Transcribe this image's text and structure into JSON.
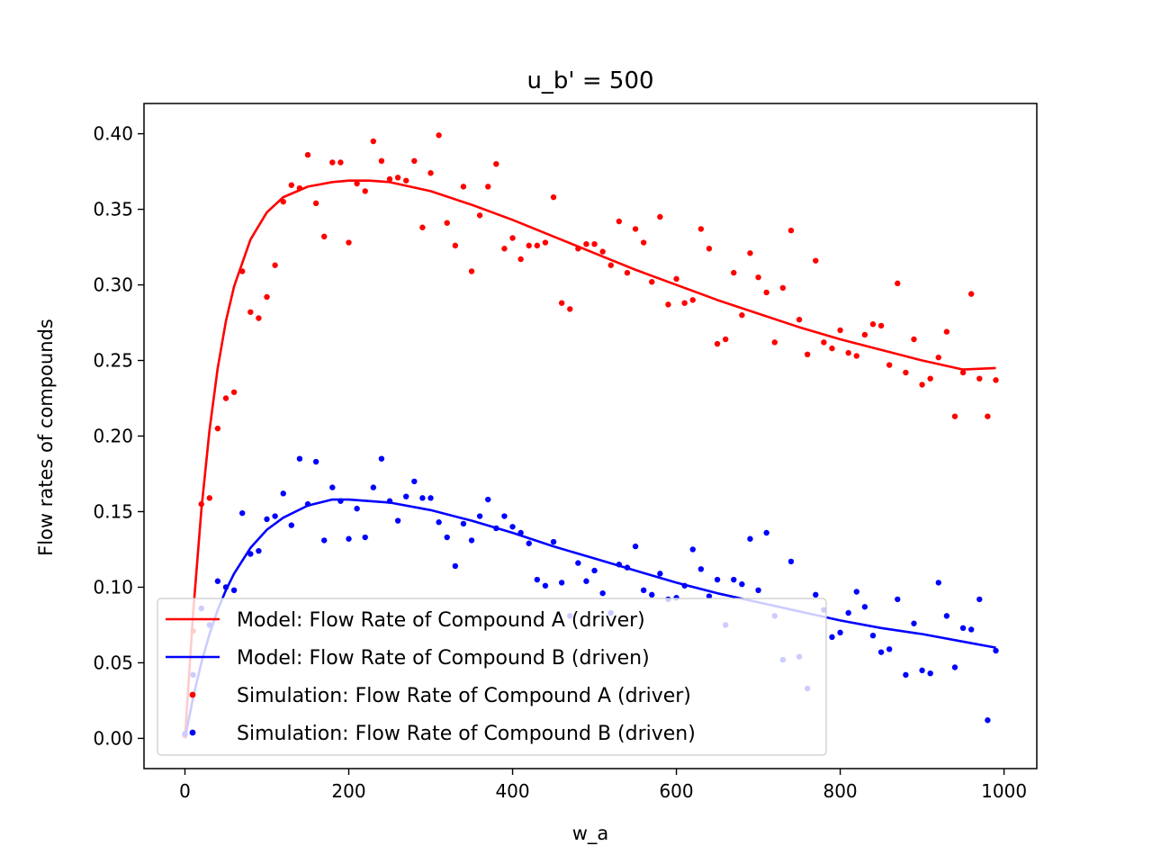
{
  "chart_data": {
    "type": "scatter",
    "title": "u_b' = 500",
    "xlabel": "w_a",
    "ylabel": "Flow rates of compounds",
    "xlim": [
      -50,
      1040
    ],
    "ylim": [
      -0.02,
      0.42
    ],
    "xticks": [
      0,
      200,
      400,
      600,
      800,
      1000
    ],
    "xtick_labels": [
      "0",
      "200",
      "400",
      "600",
      "800",
      "1000"
    ],
    "yticks": [
      0.0,
      0.05,
      0.1,
      0.15,
      0.2,
      0.25,
      0.3,
      0.35,
      0.4
    ],
    "ytick_labels": [
      "0.00",
      "0.05",
      "0.10",
      "0.15",
      "0.20",
      "0.25",
      "0.30",
      "0.35",
      "0.40"
    ],
    "grid": false,
    "legend_position": "lower-left",
    "series": [
      {
        "name": "Model: Flow Rate of Compound A (driver)",
        "kind": "line",
        "color": "#ff0000",
        "x": [
          0,
          10,
          20,
          30,
          40,
          50,
          60,
          80,
          100,
          120,
          150,
          180,
          200,
          225,
          250,
          300,
          350,
          400,
          450,
          500,
          550,
          600,
          650,
          700,
          750,
          800,
          850,
          900,
          950,
          990
        ],
        "y": [
          0.0,
          0.083,
          0.151,
          0.204,
          0.245,
          0.276,
          0.299,
          0.33,
          0.348,
          0.358,
          0.365,
          0.368,
          0.369,
          0.369,
          0.368,
          0.362,
          0.353,
          0.343,
          0.332,
          0.321,
          0.31,
          0.3,
          0.29,
          0.281,
          0.272,
          0.264,
          0.257,
          0.25,
          0.244,
          0.245
        ]
      },
      {
        "name": "Model: Flow Rate of Compound B (driven)",
        "kind": "line",
        "color": "#0000ff",
        "x": [
          0,
          10,
          20,
          30,
          40,
          50,
          60,
          80,
          100,
          120,
          150,
          180,
          200,
          250,
          300,
          350,
          400,
          450,
          500,
          550,
          600,
          650,
          700,
          750,
          800,
          850,
          900,
          950,
          990
        ],
        "y": [
          0.0,
          0.027,
          0.05,
          0.069,
          0.085,
          0.098,
          0.109,
          0.126,
          0.138,
          0.146,
          0.154,
          0.158,
          0.158,
          0.156,
          0.151,
          0.144,
          0.136,
          0.127,
          0.119,
          0.111,
          0.103,
          0.096,
          0.09,
          0.084,
          0.078,
          0.073,
          0.069,
          0.064,
          0.06
        ]
      },
      {
        "name": "Simulation: Flow Rate of Compound A (driver)",
        "kind": "scatter",
        "color": "#ff0000",
        "x": [
          0,
          10,
          20,
          30,
          40,
          50,
          60,
          70,
          80,
          90,
          100,
          110,
          120,
          130,
          140,
          150,
          160,
          170,
          180,
          190,
          200,
          210,
          220,
          230,
          240,
          250,
          260,
          270,
          280,
          290,
          300,
          310,
          320,
          330,
          340,
          350,
          360,
          370,
          380,
          390,
          400,
          410,
          420,
          430,
          440,
          450,
          460,
          470,
          480,
          490,
          500,
          510,
          520,
          530,
          540,
          550,
          560,
          570,
          580,
          590,
          600,
          610,
          620,
          630,
          640,
          650,
          660,
          670,
          680,
          690,
          700,
          710,
          720,
          730,
          740,
          750,
          760,
          770,
          780,
          790,
          800,
          810,
          820,
          830,
          840,
          850,
          860,
          870,
          880,
          890,
          900,
          910,
          920,
          930,
          940,
          950,
          960,
          970,
          980,
          990
        ],
        "y": [
          0.002,
          0.071,
          0.155,
          0.159,
          0.205,
          0.225,
          0.229,
          0.309,
          0.282,
          0.278,
          0.292,
          0.313,
          0.355,
          0.366,
          0.364,
          0.386,
          0.354,
          0.332,
          0.381,
          0.381,
          0.328,
          0.367,
          0.362,
          0.395,
          0.382,
          0.37,
          0.371,
          0.369,
          0.382,
          0.338,
          0.374,
          0.399,
          0.341,
          0.326,
          0.365,
          0.309,
          0.346,
          0.365,
          0.38,
          0.324,
          0.331,
          0.317,
          0.326,
          0.326,
          0.328,
          0.358,
          0.288,
          0.284,
          0.324,
          0.327,
          0.327,
          0.322,
          0.313,
          0.342,
          0.308,
          0.337,
          0.328,
          0.302,
          0.345,
          0.287,
          0.304,
          0.288,
          0.29,
          0.337,
          0.324,
          0.261,
          0.264,
          0.308,
          0.28,
          0.321,
          0.305,
          0.295,
          0.262,
          0.298,
          0.336,
          0.277,
          0.254,
          0.316,
          0.262,
          0.258,
          0.27,
          0.255,
          0.253,
          0.267,
          0.274,
          0.273,
          0.247,
          0.301,
          0.242,
          0.264,
          0.234,
          0.238,
          0.252,
          0.269,
          0.213,
          0.242,
          0.294,
          0.238,
          0.213,
          0.237
        ]
      },
      {
        "name": "Simulation: Flow Rate of Compound B (driven)",
        "kind": "scatter",
        "color": "#0000ff",
        "x": [
          0,
          10,
          20,
          30,
          40,
          50,
          60,
          70,
          80,
          90,
          100,
          110,
          120,
          130,
          140,
          150,
          160,
          170,
          180,
          190,
          200,
          210,
          220,
          230,
          240,
          250,
          260,
          270,
          280,
          290,
          300,
          310,
          320,
          330,
          340,
          350,
          360,
          370,
          380,
          390,
          400,
          410,
          420,
          430,
          440,
          450,
          460,
          470,
          480,
          490,
          500,
          510,
          520,
          530,
          540,
          550,
          560,
          570,
          580,
          590,
          600,
          610,
          620,
          630,
          640,
          650,
          660,
          670,
          680,
          690,
          700,
          710,
          720,
          730,
          740,
          750,
          760,
          770,
          780,
          790,
          800,
          810,
          820,
          830,
          840,
          850,
          860,
          870,
          880,
          890,
          900,
          910,
          920,
          930,
          940,
          950,
          960,
          970,
          980,
          990
        ],
        "y": [
          0.003,
          0.042,
          0.086,
          0.075,
          0.104,
          0.1,
          0.098,
          0.149,
          0.122,
          0.124,
          0.145,
          0.147,
          0.162,
          0.141,
          0.185,
          0.155,
          0.183,
          0.131,
          0.166,
          0.157,
          0.132,
          0.152,
          0.133,
          0.166,
          0.185,
          0.157,
          0.144,
          0.16,
          0.17,
          0.159,
          0.159,
          0.143,
          0.133,
          0.114,
          0.142,
          0.131,
          0.147,
          0.158,
          0.139,
          0.147,
          0.14,
          0.136,
          0.129,
          0.105,
          0.101,
          0.13,
          0.103,
          0.081,
          0.116,
          0.104,
          0.111,
          0.096,
          0.083,
          0.115,
          0.113,
          0.127,
          0.098,
          0.095,
          0.109,
          0.092,
          0.093,
          0.101,
          0.125,
          0.112,
          0.094,
          0.105,
          0.075,
          0.105,
          0.102,
          0.132,
          0.098,
          0.136,
          0.081,
          0.052,
          0.117,
          0.054,
          0.033,
          0.095,
          0.085,
          0.067,
          0.07,
          0.083,
          0.097,
          0.087,
          0.068,
          0.057,
          0.059,
          0.092,
          0.042,
          0.076,
          0.045,
          0.043,
          0.103,
          0.081,
          0.047,
          0.073,
          0.072,
          0.092,
          0.012,
          0.058
        ]
      }
    ]
  }
}
